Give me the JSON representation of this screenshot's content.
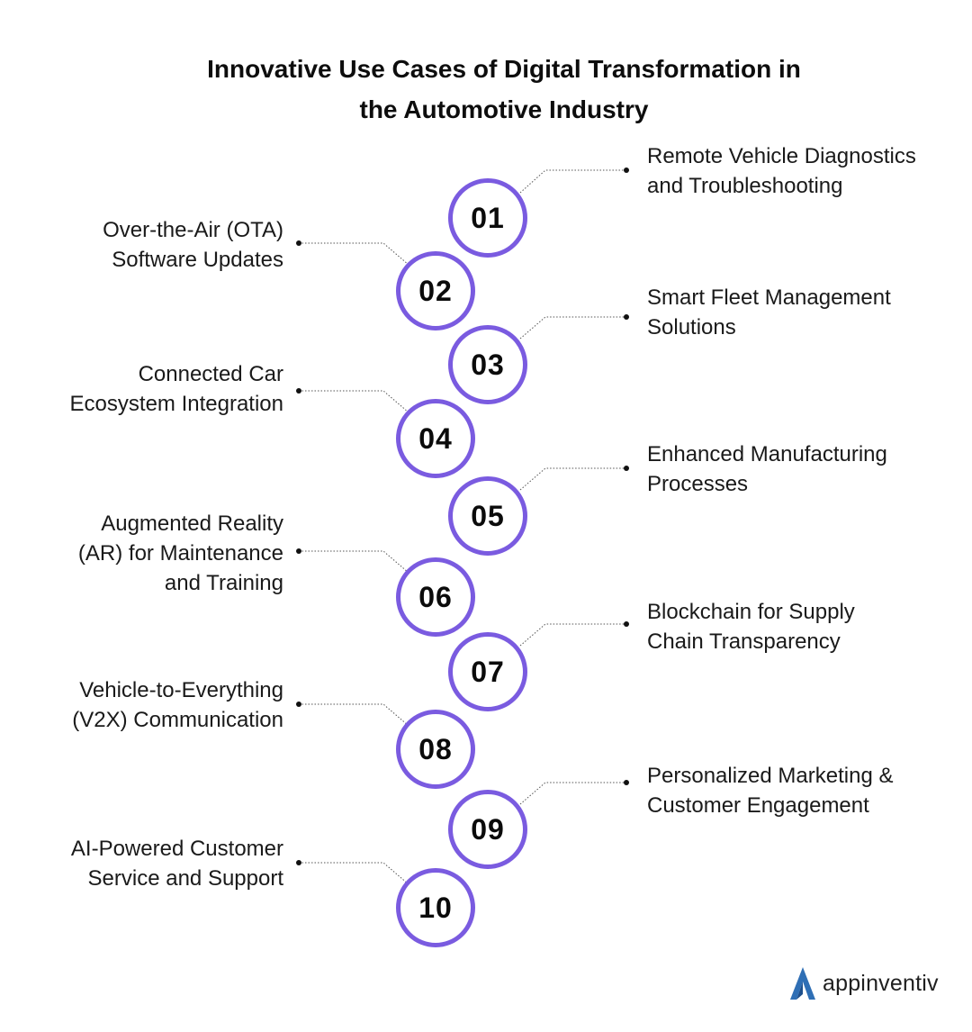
{
  "title": {
    "line1": "Innovative Use Cases of Digital Transformation in",
    "line2": "the Automotive Industry"
  },
  "accent_color": "#7a5be0",
  "items": [
    {
      "number": "01",
      "side": "right",
      "lines": [
        "Remote Vehicle Diagnostics",
        "and Troubleshooting"
      ]
    },
    {
      "number": "02",
      "side": "left",
      "lines": [
        "Over-the-Air (OTA)",
        "Software Updates"
      ]
    },
    {
      "number": "03",
      "side": "right",
      "lines": [
        "Smart Fleet Management",
        "Solutions"
      ]
    },
    {
      "number": "04",
      "side": "left",
      "lines": [
        "Connected Car",
        "Ecosystem Integration"
      ]
    },
    {
      "number": "05",
      "side": "right",
      "lines": [
        "Enhanced Manufacturing",
        "Processes"
      ]
    },
    {
      "number": "06",
      "side": "left",
      "lines": [
        "Augmented Reality",
        "(AR) for Maintenance",
        "and Training"
      ]
    },
    {
      "number": "07",
      "side": "right",
      "lines": [
        "Blockchain for Supply",
        "Chain Transparency"
      ]
    },
    {
      "number": "08",
      "side": "left",
      "lines": [
        "Vehicle-to-Everything",
        "(V2X) Communication"
      ]
    },
    {
      "number": "09",
      "side": "right",
      "lines": [
        "Personalized Marketing &",
        "Customer Engagement"
      ]
    },
    {
      "number": "10",
      "side": "left",
      "lines": [
        "AI-Powered Customer",
        "Service and Support"
      ]
    }
  ],
  "brand": {
    "name": "appinventiv",
    "icon": "appinventiv-logo-icon",
    "color": "#2f6fb5"
  }
}
